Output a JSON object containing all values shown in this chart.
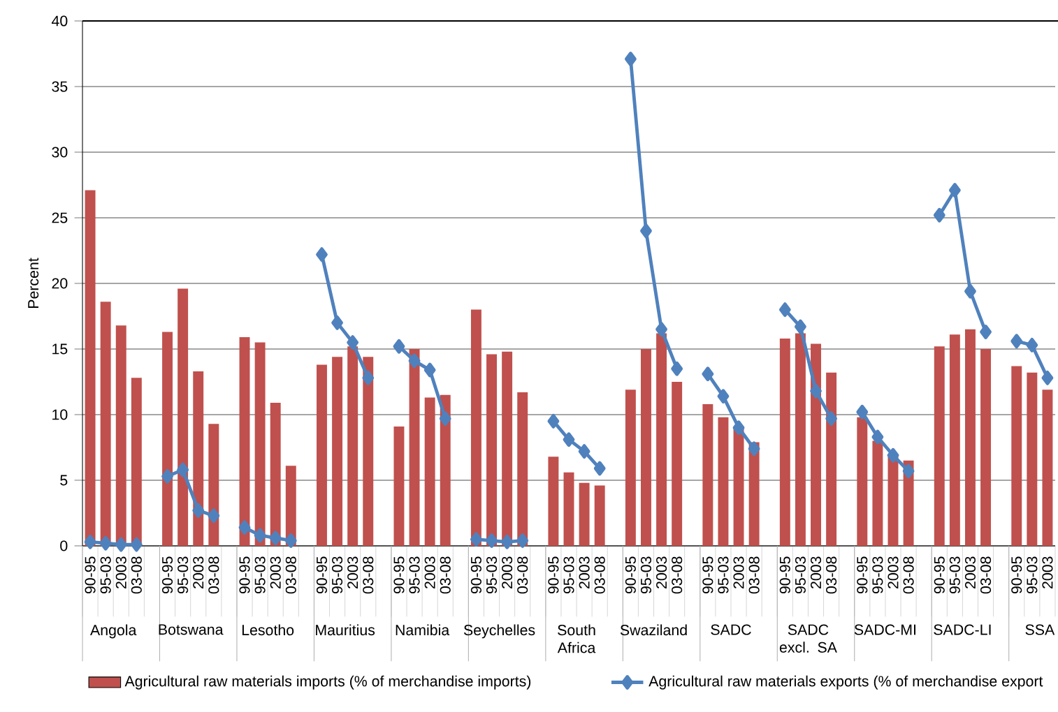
{
  "chart_data": {
    "type": "bar",
    "ylabel": "Percent",
    "categories": [
      "90-95",
      "95-03",
      "2003",
      "03-08",
      null,
      "90-95",
      "95-03",
      "2003",
      "03-08",
      null,
      "90-95",
      "95-03",
      "2003",
      "03-08",
      null,
      "90-95",
      "95-03",
      "2003",
      "03-08",
      null,
      "90-95",
      "95-03",
      "2003",
      "03-08",
      null,
      "90-95",
      "95-03",
      "2003",
      "03-08",
      null,
      "90-95",
      "95-03",
      "2003",
      "03-08",
      null,
      "90-95",
      "95-03",
      "2003",
      "03-08",
      null,
      "90-95",
      "95-03",
      "2003",
      "03-08",
      null,
      "90-95",
      "95-03",
      "2003",
      "03-08",
      null,
      "90-95",
      "95-03",
      "2003",
      "03-08",
      null,
      "90-95",
      "95-03",
      "2003",
      "03-08",
      null,
      "90-95",
      "95-03",
      "2003"
    ],
    "annotations": [
      "Angola",
      "Botswana",
      "Lesotho",
      "Mauritius",
      "Namibia",
      "Seychelles",
      "South Africa",
      "Swaziland",
      "SADC",
      "SADC excl. SA",
      "SADC-MI",
      "SADC-LI",
      "SSA"
    ],
    "series": [
      {
        "name": "Agricultural raw materials imports (% of merchandise imports)",
        "color": "#c0504d",
        "values": [
          27.1,
          18.6,
          16.8,
          12.8,
          null,
          16.3,
          19.6,
          13.3,
          9.3,
          null,
          15.9,
          15.5,
          10.9,
          6.1,
          null,
          13.8,
          14.4,
          15.2,
          14.4,
          null,
          9.1,
          15.0,
          11.3,
          11.5,
          null,
          18.0,
          14.6,
          14.8,
          11.7,
          null,
          6.8,
          5.6,
          4.8,
          4.6,
          null,
          11.9,
          15.0,
          16.2,
          12.5,
          null,
          10.8,
          9.8,
          9.0,
          7.9,
          null,
          15.8,
          16.2,
          15.4,
          13.2,
          null,
          9.8,
          8.0,
          6.8,
          6.5,
          null,
          15.2,
          16.1,
          16.5,
          15.0,
          null,
          13.7,
          13.2,
          11.9
        ]
      },
      {
        "name": "Agricultural raw materials exports (% of merchandise export",
        "type": "line",
        "color": "#4f81bd",
        "marker": "diamond",
        "line_style": "solid",
        "values": [
          0.3,
          0.2,
          0.1,
          0.1,
          null,
          5.3,
          5.8,
          2.7,
          2.3,
          null,
          1.4,
          0.8,
          0.6,
          0.4,
          null,
          22.2,
          17.0,
          15.5,
          12.8,
          null,
          15.2,
          14.1,
          13.4,
          9.7,
          null,
          0.5,
          0.4,
          0.3,
          0.4,
          null,
          9.5,
          8.1,
          7.2,
          5.9,
          null,
          37.1,
          24.0,
          16.5,
          13.5,
          null,
          13.1,
          11.4,
          9.0,
          7.4,
          null,
          18.0,
          16.7,
          11.8,
          9.7,
          null,
          10.2,
          8.3,
          6.9,
          5.7,
          null,
          25.2,
          27.1,
          19.4,
          16.3,
          null,
          15.6,
          15.3,
          12.8
        ]
      }
    ],
    "ylim": [
      0,
      40
    ],
    "yticks": [
      0,
      5,
      10,
      15,
      20,
      25,
      30,
      35,
      40
    ],
    "grid": "y",
    "legend": "bottom"
  }
}
